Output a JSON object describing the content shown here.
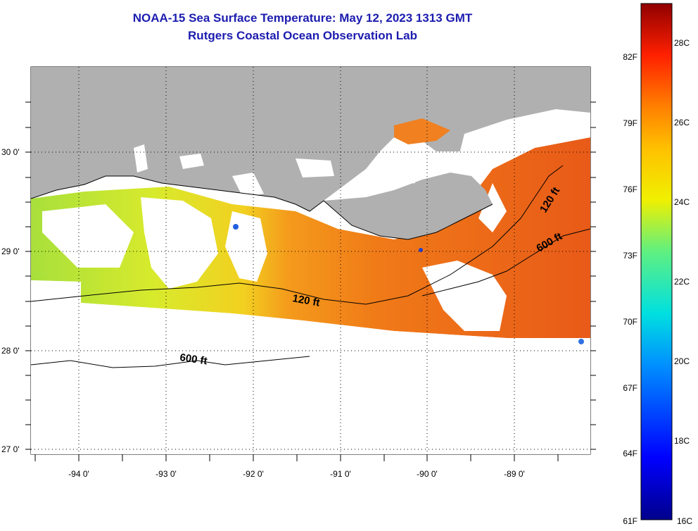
{
  "title": {
    "line1": "NOAA-15 Sea Surface Temperature:  May 12, 2023 1313 GMT",
    "line2": "Rutgers Coastal Ocean Observation Lab"
  },
  "map": {
    "lat_labels": [
      "30 0'",
      "29 0'",
      "28 0'",
      "27 0'"
    ],
    "lon_labels": [
      "-94 0'",
      "-93 0'",
      "-92 0'",
      "-91 0'",
      "-90 0'",
      "-89 0'"
    ],
    "contour_labels": [
      "120 ft",
      "600 ft",
      "120 ft",
      "600 ft"
    ],
    "colors": {
      "land": "#b0b0b0",
      "ocean_cool": "#c8e83a",
      "ocean_warm": "#f07018"
    }
  },
  "colorbar": {
    "fahrenheit_labels": [
      "82F",
      "79F",
      "76F",
      "73F",
      "70F",
      "67F",
      "64F",
      "61F"
    ],
    "celsius_labels": [
      "28C",
      "26C",
      "24C",
      "22C",
      "20C",
      "18C",
      "16C"
    ],
    "range_c": [
      16,
      29
    ]
  }
}
